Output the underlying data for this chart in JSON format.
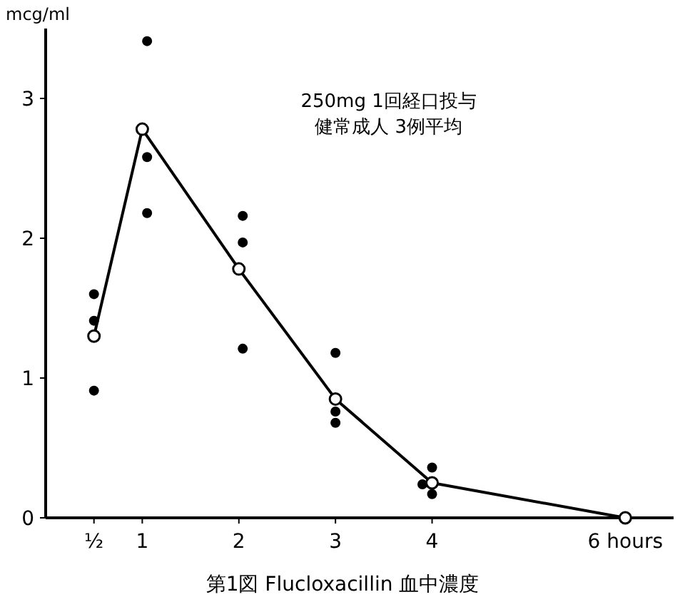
{
  "chart_data": {
    "type": "scatter",
    "title": "第1図 Flucloxacillin 血中濃度",
    "ylabel": "mcg/ml",
    "annotations": [
      "250mg 1回経口投与",
      "健常成人 3例平均"
    ],
    "xlim": [
      0,
      6.5
    ],
    "ylim": [
      0,
      3.5
    ],
    "xticks": [
      {
        "value": 0.5,
        "label": "½"
      },
      1,
      2,
      3,
      4,
      {
        "value": 6,
        "label": "6 hours"
      }
    ],
    "yticks": [
      0,
      1,
      2,
      3
    ],
    "grid": false,
    "series": [
      {
        "marker": "circle",
        "color": "#000000",
        "x": [
          0.5,
          0.5,
          0.5,
          1.05,
          1.05,
          1.05,
          2.04,
          2.04,
          2.04,
          3,
          3,
          3,
          4,
          3.9,
          4
        ],
        "values": [
          1.6,
          1.41,
          0.91,
          3.41,
          2.58,
          2.18,
          2.16,
          1.97,
          1.21,
          1.18,
          0.76,
          0.68,
          0.36,
          0.24,
          0.17
        ]
      },
      {
        "type": "line",
        "marker": "circle",
        "line_style": "solid",
        "color": "#000000",
        "x": [
          0.5,
          1,
          2,
          3,
          4,
          6
        ],
        "values": [
          1.3,
          2.78,
          1.78,
          0.85,
          0.25,
          0
        ]
      }
    ]
  }
}
